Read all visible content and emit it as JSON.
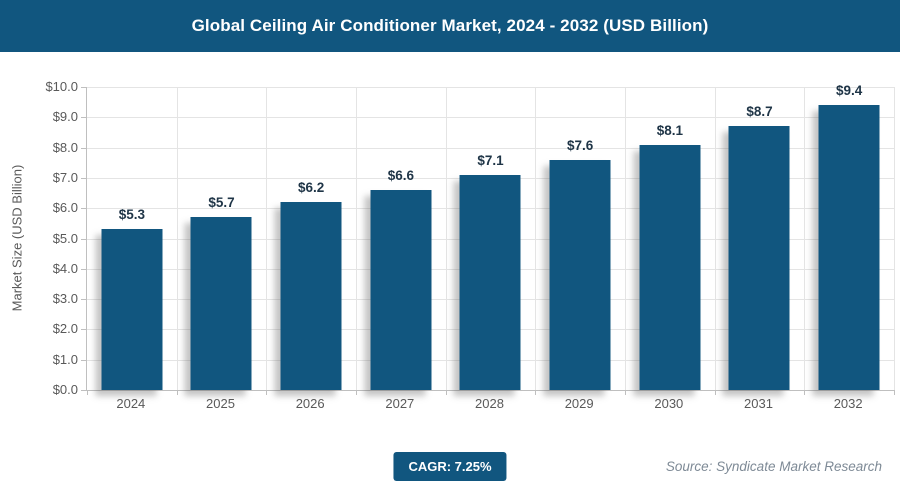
{
  "header": {
    "title": "Global Ceiling Air Conditioner Market, 2024 - 2032 (USD Billion)"
  },
  "chart_data": {
    "type": "bar",
    "title": "Global Ceiling Air Conditioner Market, 2024 - 2032 (USD Billion)",
    "categories": [
      "2024",
      "2025",
      "2026",
      "2027",
      "2028",
      "2029",
      "2030",
      "2031",
      "2032"
    ],
    "values": [
      5.3,
      5.7,
      6.2,
      6.6,
      7.1,
      7.6,
      8.1,
      8.7,
      9.4
    ],
    "bar_labels": [
      "$5.3",
      "$5.7",
      "$6.2",
      "$6.6",
      "$7.1",
      "$7.6",
      "$8.1",
      "$8.7",
      "$9.4"
    ],
    "xlabel": "",
    "ylabel": "Market Size (USD Billion)",
    "ylim": [
      0,
      10
    ],
    "ytick_labels": [
      "$0.0",
      "$1.0",
      "$2.0",
      "$3.0",
      "$4.0",
      "$5.0",
      "$6.0",
      "$7.0",
      "$8.0",
      "$9.0",
      "$10.0"
    ],
    "grid": true,
    "legend_position": "none",
    "bar_color": "#11567F"
  },
  "footer": {
    "cagr_badge": "CAGR: 7.25%",
    "source": "Source: Syndicate Market Research"
  },
  "colors": {
    "brand_blue": "#11567F",
    "axis_text": "#595959",
    "grid_line": "#E4E4E4",
    "axis_line": "#BFBFBF",
    "bar_label_text": "#1F3547",
    "source_text": "#7E8A96",
    "title_text": "#FFFFFF",
    "background": "#FFFFFF"
  }
}
